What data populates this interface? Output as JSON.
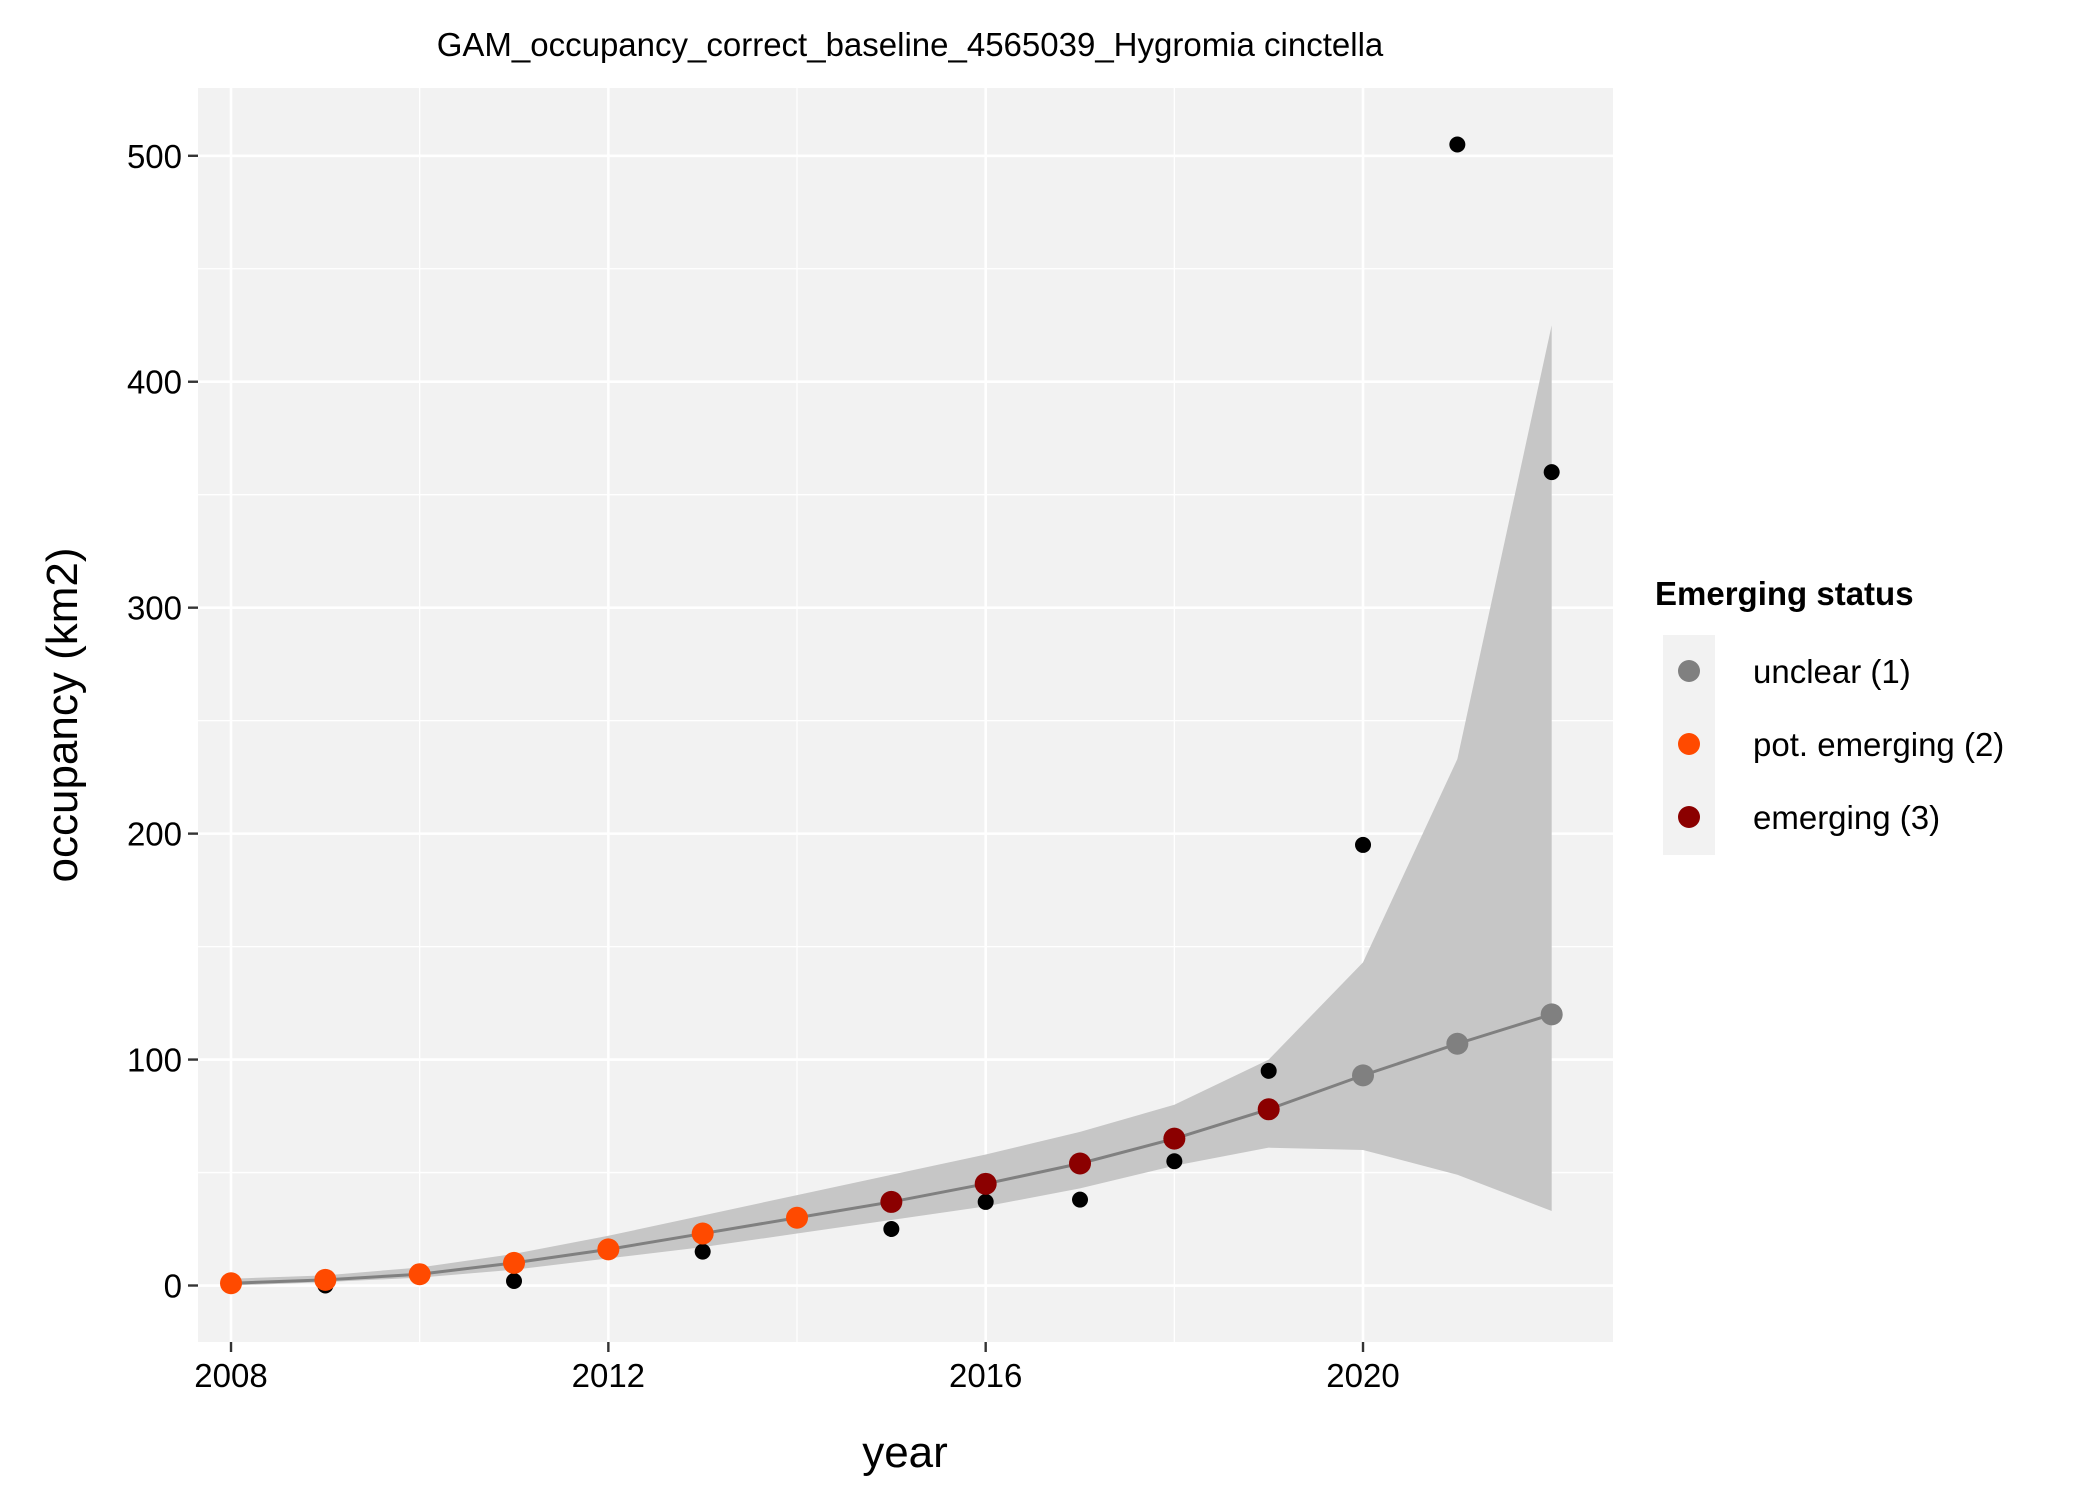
{
  "chart_data": {
    "type": "scatter",
    "title": "GAM_occupancy_correct_baseline_4565039_Hygromia cinctella",
    "xlabel": "year",
    "ylabel": "occupancy (km2)",
    "xlim": [
      2007.65,
      2022.65
    ],
    "ylim": [
      -25,
      530
    ],
    "x_ticks": [
      2008,
      2012,
      2016,
      2020
    ],
    "x_tick_labels": [
      "2008",
      "2012",
      "2016",
      "2020"
    ],
    "y_ticks": [
      0,
      100,
      200,
      300,
      400,
      500
    ],
    "y_tick_labels": [
      "0",
      "100",
      "200",
      "300",
      "400",
      "500"
    ],
    "grid": true,
    "observed": {
      "x": [
        2009,
        2011,
        2013,
        2015,
        2016,
        2017,
        2018,
        2019,
        2020,
        2021,
        2022
      ],
      "y": [
        0,
        2,
        15,
        25,
        37,
        38,
        55,
        95,
        195,
        505,
        360
      ],
      "color": "#000000"
    },
    "fit": {
      "x": [
        2008,
        2009,
        2010,
        2011,
        2012,
        2013,
        2014,
        2015,
        2016,
        2017,
        2018,
        2019,
        2020,
        2021,
        2022
      ],
      "y": [
        1,
        2.5,
        5,
        10,
        16,
        23,
        30,
        37,
        45,
        54,
        65,
        78,
        93,
        107,
        120
      ],
      "status": [
        2,
        2,
        2,
        2,
        2,
        2,
        2,
        3,
        3,
        3,
        3,
        3,
        1,
        1,
        1
      ],
      "lower": [
        0,
        1.5,
        3.5,
        7,
        12,
        17,
        23,
        29,
        35,
        43,
        53,
        61,
        60,
        49,
        33
      ],
      "upper": [
        3,
        4.5,
        8,
        14,
        22,
        31,
        40,
        49,
        58,
        68,
        80,
        100,
        143,
        233,
        425
      ],
      "line_color": "#808080",
      "band_color": "#c6c6c6"
    },
    "legend": {
      "title": "Emerging status",
      "position": "right",
      "entries": [
        {
          "label": "unclear (1)",
          "status": 1,
          "color": "#808080"
        },
        {
          "label": "pot. emerging (2)",
          "status": 2,
          "color": "#ff4a00"
        },
        {
          "label": "emerging (3)",
          "status": 3,
          "color": "#8b0000"
        }
      ]
    }
  }
}
